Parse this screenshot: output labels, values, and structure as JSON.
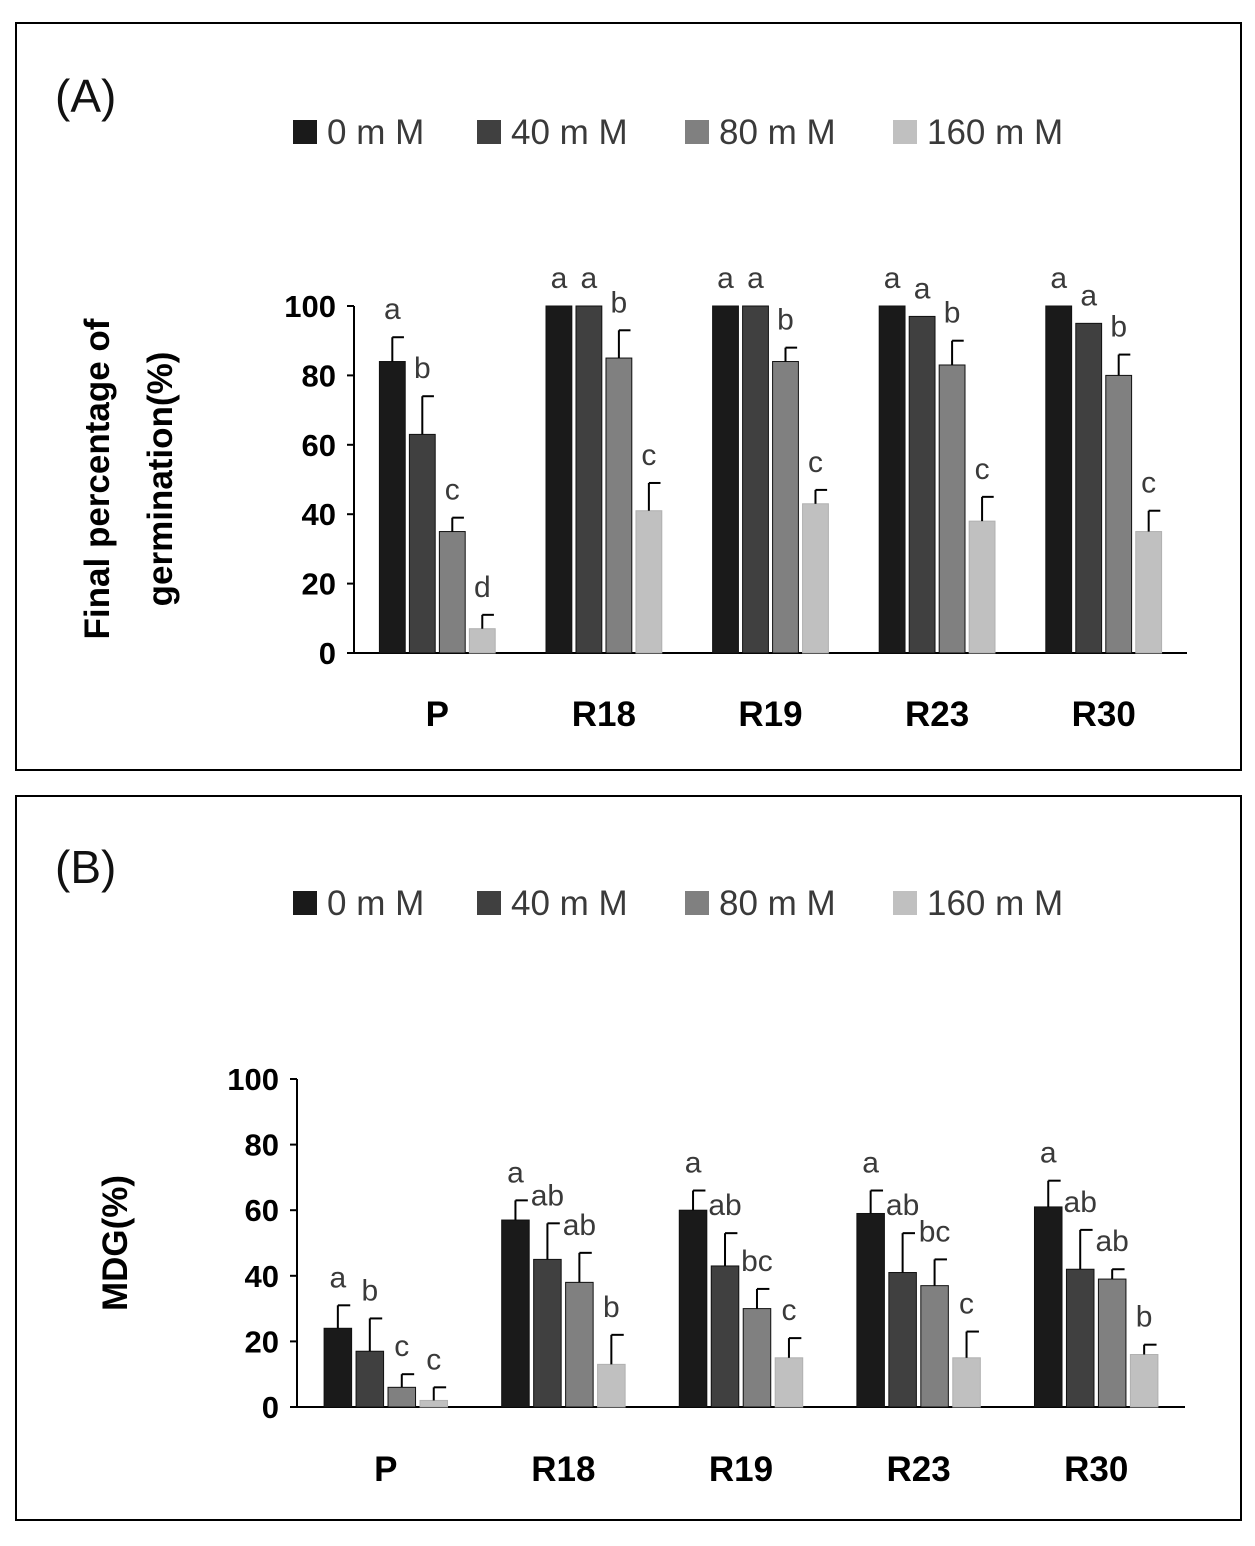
{
  "chart_data": [
    {
      "type": "bar",
      "panel_label": "(A)",
      "ylabel_lines": [
        "Final percentage of",
        "germination(%)"
      ],
      "xlabel": "",
      "ylim": [
        0,
        100
      ],
      "yticks": [
        0,
        20,
        40,
        60,
        80,
        100
      ],
      "grid": false,
      "legend_position": "top-center",
      "categories": [
        "P",
        "R18",
        "R19",
        "R23",
        "R30"
      ],
      "series": [
        {
          "name": "0 m M",
          "color": "#1a1a1a",
          "values": [
            84,
            100,
            100,
            100,
            100
          ],
          "errors": [
            7,
            0,
            0,
            0,
            0
          ],
          "labels": [
            "a",
            "a",
            "a",
            "a",
            "a"
          ]
        },
        {
          "name": "40 m M",
          "color": "#404040",
          "values": [
            63,
            100,
            100,
            97,
            95
          ],
          "errors": [
            11,
            0,
            0,
            0,
            0
          ],
          "labels": [
            "b",
            "a",
            "a",
            "a",
            "a"
          ]
        },
        {
          "name": "80 m M",
          "color": "#808080",
          "values": [
            35,
            85,
            84,
            83,
            80
          ],
          "errors": [
            4,
            8,
            4,
            7,
            6
          ],
          "labels": [
            "c",
            "b",
            "b",
            "b",
            "b"
          ]
        },
        {
          "name": "160 m M",
          "color": "#c0c0c0",
          "values": [
            7,
            41,
            43,
            38,
            35
          ],
          "errors": [
            4,
            8,
            4,
            7,
            6
          ],
          "labels": [
            "d",
            "c",
            "c",
            "c",
            "c"
          ]
        }
      ]
    },
    {
      "type": "bar",
      "panel_label": "(B)",
      "ylabel_lines": [
        "MDG(%)"
      ],
      "xlabel": "",
      "ylim": [
        0,
        100
      ],
      "yticks": [
        0,
        20,
        40,
        60,
        80,
        100
      ],
      "grid": false,
      "legend_position": "top-center",
      "categories": [
        "P",
        "R18",
        "R19",
        "R23",
        "R30"
      ],
      "series": [
        {
          "name": "0 m M",
          "color": "#1a1a1a",
          "values": [
            24,
            57,
            60,
            59,
            61
          ],
          "errors": [
            7,
            6,
            6,
            7,
            8
          ],
          "labels": [
            "a",
            "a",
            "a",
            "a",
            "a"
          ]
        },
        {
          "name": "40 m M",
          "color": "#404040",
          "values": [
            17,
            45,
            43,
            41,
            42
          ],
          "errors": [
            10,
            11,
            10,
            12,
            12
          ],
          "labels": [
            "b",
            "ab",
            "ab",
            "ab",
            "ab"
          ]
        },
        {
          "name": "80 m M",
          "color": "#808080",
          "values": [
            6,
            38,
            30,
            37,
            39
          ],
          "errors": [
            4,
            9,
            6,
            8,
            3
          ],
          "labels": [
            "c",
            "ab",
            "bc",
            "bc",
            "ab"
          ]
        },
        {
          "name": "160 m M",
          "color": "#c0c0c0",
          "values": [
            2,
            13,
            15,
            15,
            16
          ],
          "errors": [
            4,
            9,
            6,
            8,
            3
          ],
          "labels": [
            "c",
            "b",
            "c",
            "c",
            "b"
          ]
        }
      ]
    }
  ]
}
